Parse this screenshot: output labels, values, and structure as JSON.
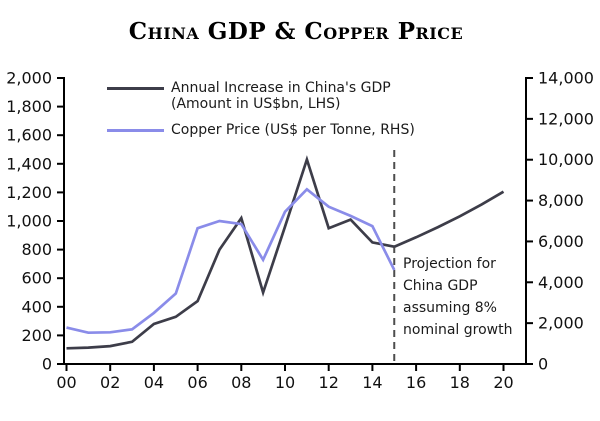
{
  "title": "China GDP & Copper Price",
  "legend": {
    "gdp_label": "Annual Increase in China's GDP\n(Amount in US$bn, LHS)",
    "copper_label": "Copper Price (US$ per Tonne, RHS)"
  },
  "annotation": "Projection for\nChina GDP\nassuming 8%\nnominal growth",
  "colors": {
    "gdp_line": "#3d3d49",
    "copper_line": "#8a8ce9",
    "axis": "#000000",
    "tick_text": "#111111",
    "dashed_line": "#4d4d4d"
  },
  "chart_data": {
    "type": "line",
    "title": "China GDP & Copper Price",
    "left_axis": {
      "min": 0,
      "max": 2000,
      "step": 200,
      "tick_labels": [
        "0",
        "200",
        "400",
        "600",
        "800",
        "1,000",
        "1,200",
        "1,400",
        "1,600",
        "1,800",
        "2,000"
      ]
    },
    "right_axis": {
      "min": 0,
      "max": 14000,
      "step": 2000,
      "tick_labels": [
        "0",
        "2,000",
        "4,000",
        "6,000",
        "8,000",
        "10,000",
        "12,000",
        "14,000"
      ]
    },
    "x_axis": {
      "tick_labels": [
        "00",
        "02",
        "04",
        "06",
        "08",
        "10",
        "12",
        "14",
        "16",
        "18",
        "20"
      ],
      "tick_years": [
        0,
        2,
        4,
        6,
        8,
        10,
        12,
        14,
        16,
        18,
        20
      ]
    },
    "dashed_line_year": 15,
    "grid": false,
    "legend_position": "top-left-inside",
    "series": [
      {
        "name": "Annual Increase in China's GDP (Amount in US$bn, LHS)",
        "axis": "left",
        "color_key": "gdp_line",
        "x": [
          0,
          1,
          2,
          3,
          4,
          5,
          6,
          7,
          8,
          9,
          10,
          11,
          12,
          13,
          14,
          15
        ],
        "values": [
          110,
          115,
          125,
          155,
          280,
          330,
          440,
          800,
          1020,
          500,
          960,
          1430,
          950,
          1010,
          850,
          820
        ]
      },
      {
        "name": "China GDP projection (8% nominal growth)",
        "axis": "left",
        "color_key": "gdp_line",
        "x": [
          15,
          16,
          17,
          18,
          19,
          20
        ],
        "values": [
          820,
          886,
          957,
          1033,
          1116,
          1205
        ]
      },
      {
        "name": "Copper Price (US$ per Tonne, RHS)",
        "axis": "right",
        "color_key": "copper_line",
        "x": [
          0,
          1,
          2,
          3,
          4,
          5,
          6,
          7,
          8,
          9,
          10,
          11,
          12,
          13,
          14,
          15
        ],
        "values": [
          1780,
          1530,
          1550,
          1700,
          2500,
          3450,
          6650,
          7000,
          6850,
          5100,
          7450,
          8550,
          7700,
          7250,
          6750,
          4600
        ]
      }
    ]
  }
}
